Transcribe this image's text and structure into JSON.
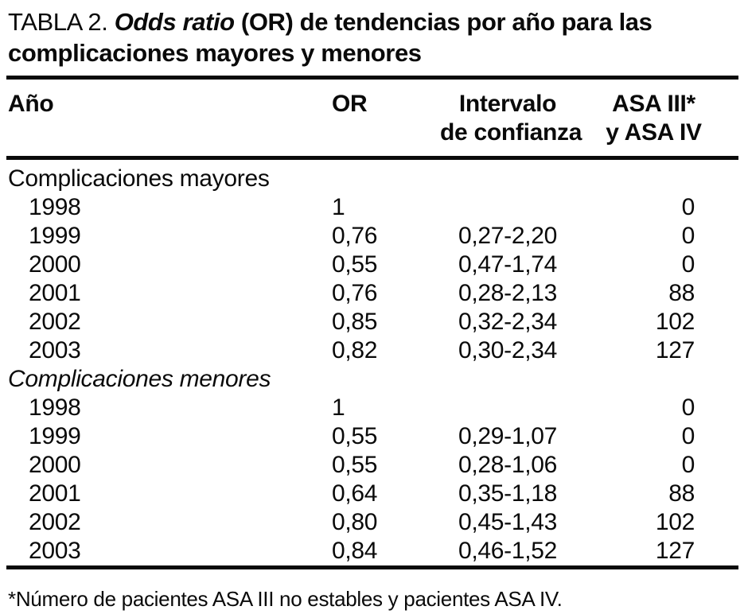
{
  "title": {
    "label": "TABLA 2. ",
    "emphasis": "Odds ratio",
    "line1_rest": " (OR) de tendencias por año para las",
    "line2": "complicaciones mayores y menores"
  },
  "columns": {
    "year": "Año",
    "or": "OR",
    "ci_line1": "Intervalo",
    "ci_line2": "de confianza",
    "asa_line1": "ASA III*",
    "asa_line2": "y ASA IV"
  },
  "table": {
    "sections": [
      {
        "label": "Complicaciones mayores",
        "italic": false,
        "rows": [
          {
            "year": "1998",
            "or": "1",
            "ci": "",
            "asa": "0"
          },
          {
            "year": "1999",
            "or": "0,76",
            "ci": "0,27-2,20",
            "asa": "0"
          },
          {
            "year": "2000",
            "or": "0,55",
            "ci": "0,47-1,74",
            "asa": "0"
          },
          {
            "year": "2001",
            "or": "0,76",
            "ci": "0,28-2,13",
            "asa": "88"
          },
          {
            "year": "2002",
            "or": "0,85",
            "ci": "0,32-2,34",
            "asa": "102"
          },
          {
            "year": "2003",
            "or": "0,82",
            "ci": "0,30-2,34",
            "asa": "127"
          }
        ]
      },
      {
        "label": "Complicaciones menores",
        "italic": true,
        "rows": [
          {
            "year": "1998",
            "or": "1",
            "ci": "",
            "asa": "0"
          },
          {
            "year": "1999",
            "or": "0,55",
            "ci": "0,29-1,07",
            "asa": "0"
          },
          {
            "year": "2000",
            "or": "0,55",
            "ci": "0,28-1,06",
            "asa": "0"
          },
          {
            "year": "2001",
            "or": "0,64",
            "ci": "0,35-1,18",
            "asa": "88"
          },
          {
            "year": "2002",
            "or": "0,80",
            "ci": "0,45-1,43",
            "asa": "102"
          },
          {
            "year": "2003",
            "or": "0,84",
            "ci": "0,46-1,52",
            "asa": "127"
          }
        ]
      }
    ]
  },
  "footnote": "*Número de pacientes ASA III no estables y pacientes ASA IV.",
  "colors": {
    "ink": "#0a0a0a",
    "paper": "#ffffff"
  }
}
